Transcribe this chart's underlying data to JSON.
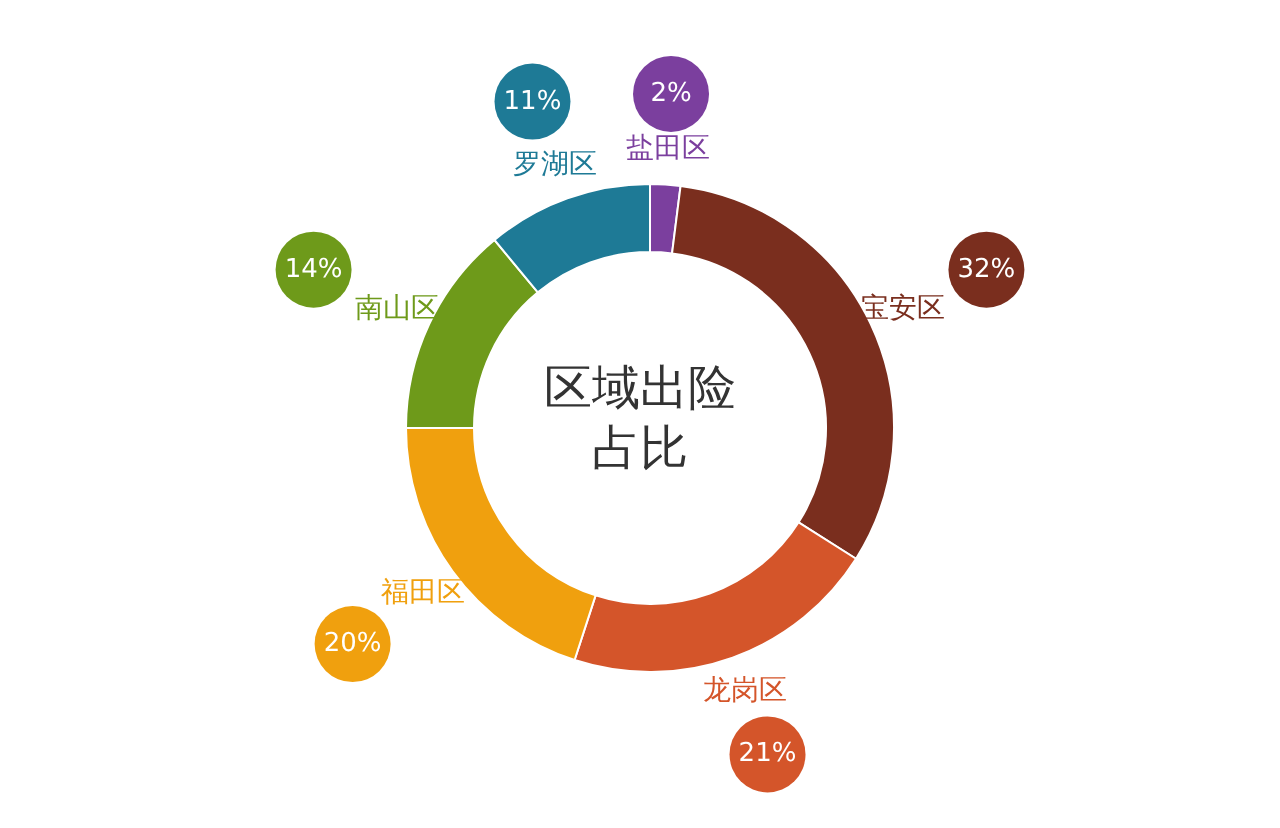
{
  "chart_data": {
    "type": "donut",
    "title": "区域出险占比",
    "categories": [
      "盐田区",
      "宝安区",
      "龙岗区",
      "福田区",
      "南山区",
      "罗湖区"
    ],
    "values": [
      2,
      32,
      21,
      20,
      14,
      11
    ],
    "value_labels": [
      "2%",
      "32%",
      "21%",
      "20%",
      "14%",
      "11%"
    ],
    "colors": [
      "#7b3f9e",
      "#7a2e1e",
      "#d4552a",
      "#f0a00e",
      "#6e9a1a",
      "#1e7a96"
    ],
    "legend": false
  }
}
